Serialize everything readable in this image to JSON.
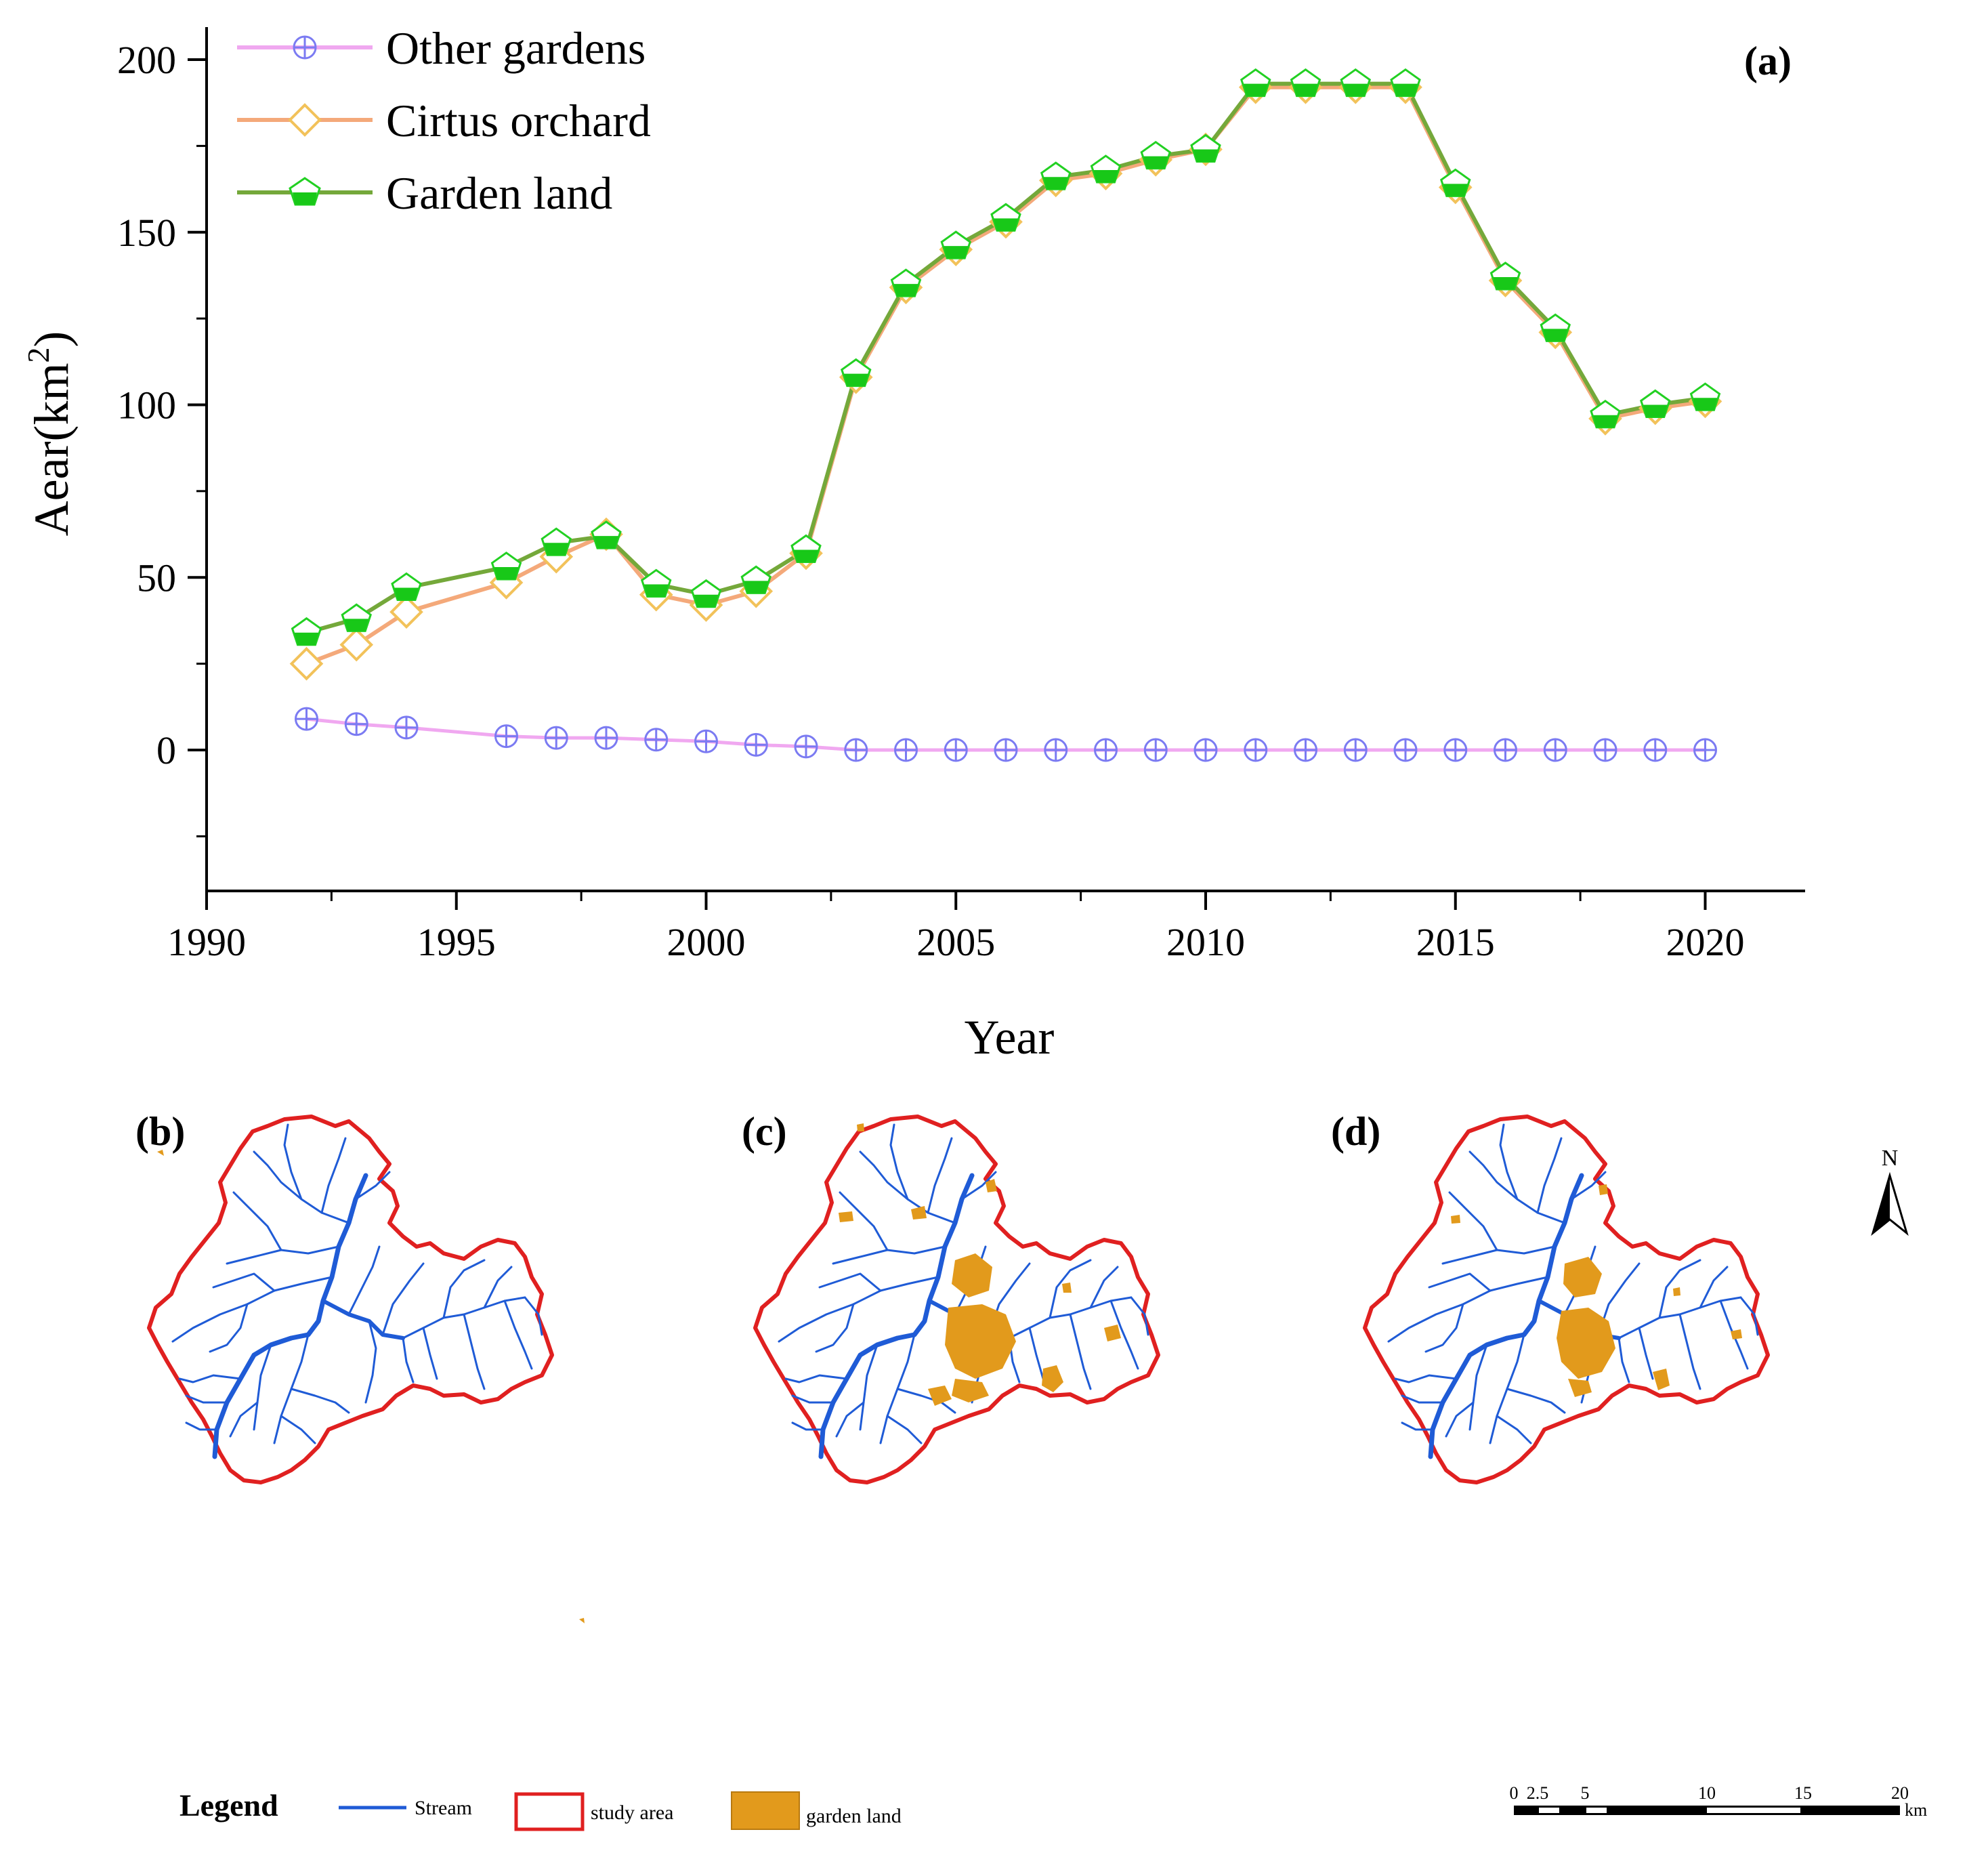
{
  "chart_data": {
    "type": "line",
    "panel_label": "(a)",
    "xlabel": "Year",
    "ylabel_base": "Aear(km",
    "ylabel_sup": "2",
    "ylabel_close": ")",
    "xlim": [
      1990,
      2022
    ],
    "ylim": [
      -40,
      200
    ],
    "x_ticks": [
      1990,
      1995,
      2000,
      2005,
      2010,
      2015,
      2020
    ],
    "y_ticks": [
      0,
      50,
      100,
      150,
      200
    ],
    "x_tick_labels": [
      "1990",
      "1995",
      "2000",
      "2005",
      "2010",
      "2015",
      "2020"
    ],
    "y_tick_labels": [
      "0",
      "50",
      "100",
      "150",
      "200"
    ],
    "legend_position": "top-left",
    "x": [
      1992,
      1993,
      1994,
      1996,
      1997,
      1998,
      1999,
      2000,
      2001,
      2002,
      2003,
      2004,
      2005,
      2006,
      2007,
      2008,
      2009,
      2010,
      2011,
      2012,
      2013,
      2014,
      2015,
      2016,
      2017,
      2018,
      2019,
      2020
    ],
    "series": [
      {
        "name": "Other gardens",
        "color": "#f0a8f0",
        "marker_color": "#7b7bf2",
        "marker": "circle-plus",
        "values": [
          9,
          7.5,
          6.5,
          4,
          3.5,
          3.5,
          3,
          2.5,
          1.5,
          1,
          0,
          0,
          0,
          0,
          0,
          0,
          0,
          0,
          0,
          0,
          0,
          0,
          0,
          0,
          0,
          0,
          0,
          0
        ]
      },
      {
        "name": "Cirtus orchard",
        "color": "#f4a97a",
        "marker_color": "#f2c25a",
        "marker": "diamond",
        "values": [
          25,
          30.5,
          40,
          48.5,
          56,
          62.5,
          45,
          42,
          46,
          57,
          108,
          134,
          145,
          153,
          165,
          167,
          171,
          174,
          192,
          192,
          192,
          192,
          163,
          136,
          121,
          96,
          99,
          101
        ]
      },
      {
        "name": "Garden land",
        "color": "#74a83a",
        "marker_color": "#22d022",
        "marker": "half-filled-pentagon",
        "values": [
          34,
          38,
          47,
          53,
          60,
          62,
          48,
          45,
          49,
          58,
          109,
          135,
          146,
          154,
          166,
          168,
          172,
          174,
          193,
          193,
          193,
          193,
          164,
          137,
          122,
          97,
          100,
          102
        ]
      }
    ]
  },
  "maps": {
    "panels": [
      "(b)",
      "(c)",
      "(d)"
    ],
    "north_label": "N",
    "legend": {
      "title": "Legend",
      "stream": "Stream",
      "study_area": "study area",
      "garden_land": "garden land"
    },
    "scale_bar": {
      "labels": [
        "0",
        "2.5",
        "5",
        "10",
        "15",
        "20"
      ],
      "unit": "km"
    },
    "colors": {
      "stream": "#1f5bd6",
      "boundary": "#e02020",
      "garden": "#e29a1c"
    }
  }
}
